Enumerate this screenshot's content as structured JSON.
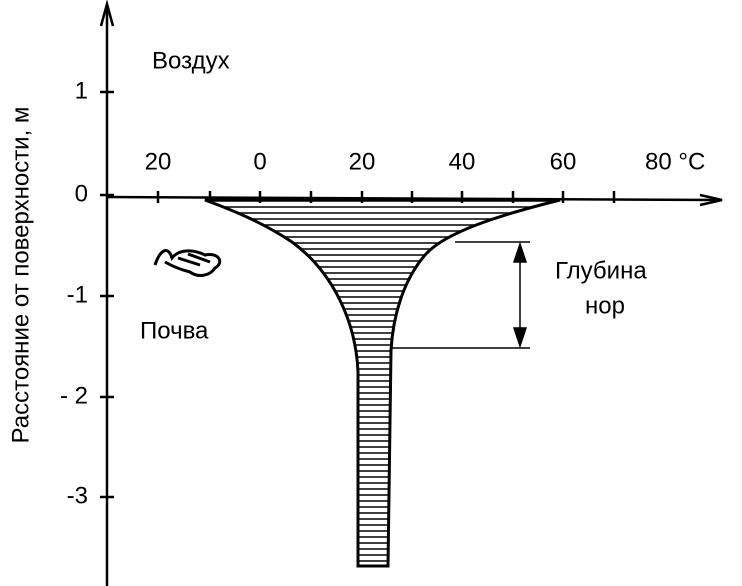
{
  "axis": {
    "y_label": "Расстояние от поверхности, м",
    "y_ticks": [
      "1",
      "0",
      "-1",
      "- 2",
      "-3"
    ],
    "x_ticks": [
      "20",
      "0",
      "20",
      "40",
      "60",
      "80 °C"
    ]
  },
  "labels": {
    "air": "Воздух",
    "soil": "Почва",
    "burrow_depth": [
      "Глубина",
      "нор"
    ]
  }
}
